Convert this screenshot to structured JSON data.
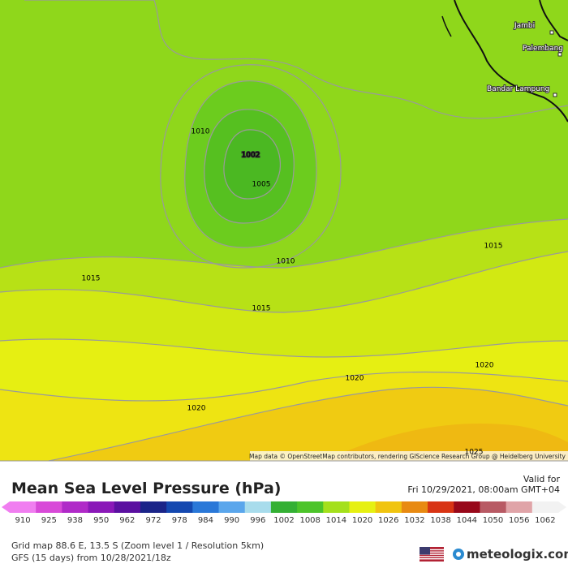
{
  "map": {
    "contour_labels": [
      "1010",
      "1002",
      "1005",
      "1010",
      "1015",
      "1015",
      "1015",
      "1020",
      "1020",
      "1020",
      "1025"
    ],
    "cities": [
      "Jambi",
      "Palembang",
      "Bandar Lampung"
    ],
    "attribution": "Map data © OpenStreetMap contributors, rendering GIScience Research Group @ Heidelberg University"
  },
  "header": {
    "title": "Mean Sea Level Pressure (hPa)",
    "valid_label": "Valid for",
    "valid_time": "Fri 10/29/2021, 08:00am GMT+04"
  },
  "legend": {
    "ticks": [
      910,
      925,
      938,
      950,
      962,
      972,
      978,
      984,
      990,
      996,
      1002,
      1008,
      1014,
      1020,
      1026,
      1032,
      1038,
      1044,
      1050,
      1056,
      1062
    ],
    "colors": [
      "#f07ef0",
      "#d84ad8",
      "#b02ac8",
      "#8a18b8",
      "#5a10a0",
      "#1a2488",
      "#1448b0",
      "#2a78d8",
      "#5aa6ec",
      "#a8dcec",
      "#34b034",
      "#4cc42a",
      "#a4e01c",
      "#e6f012",
      "#f0c410",
      "#e88a12",
      "#d83414",
      "#98081a",
      "#b85a64",
      "#e0a4a8",
      "#f2f2f2"
    ]
  },
  "footer": {
    "grid": "Grid map 88.6 E, 13.5 S (Zoom level 1 / Resolution 5km)",
    "model": "GFS (15 days) from 10/28/2021/18z",
    "brand": "meteologix.com"
  }
}
